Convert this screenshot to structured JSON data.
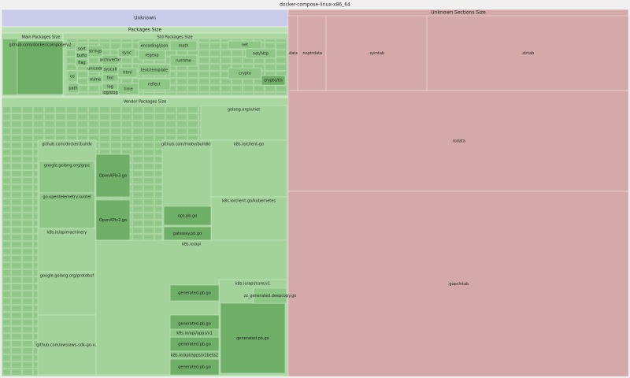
{
  "title": "docker-compose-linux-x86_64",
  "unknown": "Unknown",
  "sections": {
    "title": "Unknown Sections Size",
    "items": [
      ".data",
      ".noptrdata",
      ".symtab",
      ".strtab",
      ".rodata",
      ".gopclntab"
    ]
  },
  "packages": {
    "title": "Packages Size",
    "main": {
      "title": "Main Packages Size",
      "items": [
        "github.com/docker/compose/v2"
      ]
    },
    "std": {
      "title": "Std Packages Size",
      "items": [
        "sort",
        "bufio",
        "flag",
        "os",
        "path",
        "strings",
        "unicode",
        "syscall",
        "fmt",
        "html",
        "log",
        "log/slog",
        "time",
        "encoding/json",
        "regexp",
        "math",
        "runtime",
        "text/template",
        "reflect",
        "net",
        "net/http",
        "crypto",
        "crypto/tls",
        "archive/tar",
        "mime",
        "sync"
      ]
    },
    "vendor": {
      "title": "Vendor Packages Size",
      "items": [
        "golang.org/x/net",
        "github.com/docker/buildx",
        "github.com/moby/buildkit",
        "k8s.io/client-go",
        "google.golang.org/grpc",
        "go.opentelemetry.io/otel",
        "k8s.io/apimachinery",
        "google.golang.org/protobuf",
        "github.com/aws/aws-sdk-go-v2",
        "OpenAPIv3.go",
        "OpenAPIv2.go",
        "k8s.io/client-go/kubernetes",
        "ops.pb.go",
        "gateway.pb.go",
        "k8s.io/api",
        "k8s.io/api/core/v1",
        "generated.pb.go",
        "zz_generated.deepcopy.go",
        "generated.pb.go",
        "generated.pb.go",
        "generated.pb.go",
        "k8s.io/api/apps/v1",
        "k8s.io/api/apps/v1beta2",
        "generated.pb.go"
      ]
    }
  }
}
